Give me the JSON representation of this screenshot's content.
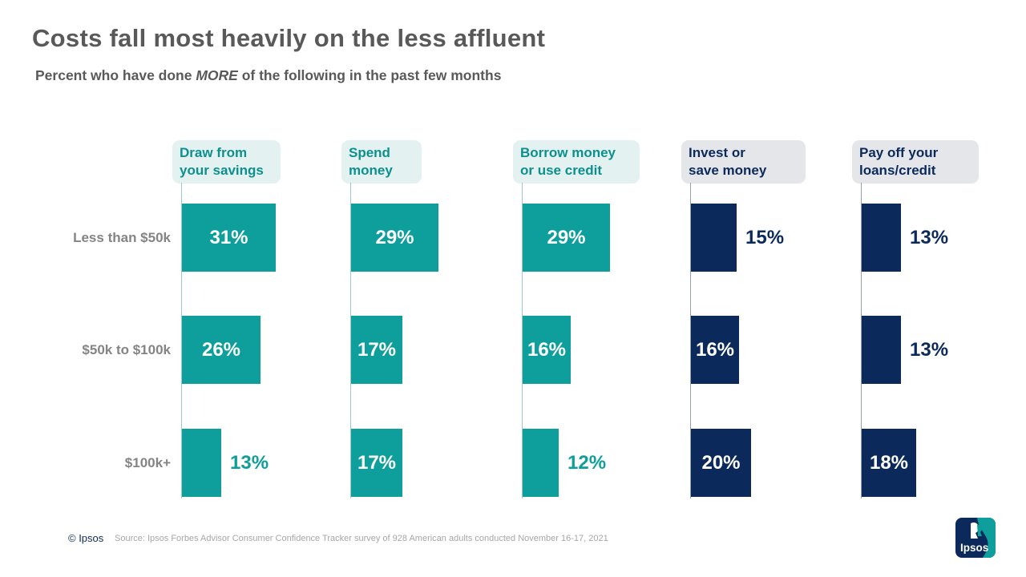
{
  "title": "Costs fall most heavily on the less affluent",
  "subtitle": {
    "prefix": "Percent who have done ",
    "emphasis": "MORE",
    "suffix": " of the following in the past few months"
  },
  "colors": {
    "teal": "#0E9E9C",
    "teal_header_bg": "#E3F2F1",
    "navy": "#0B2A5B",
    "navy_header_bg": "#E5E6E9"
  },
  "chart_data": {
    "type": "bar",
    "orientation": "horizontal",
    "unit": "%",
    "value_labels": true,
    "xlim": [
      0,
      35
    ],
    "categories": [
      "Less than $50k",
      "$50k to $100k",
      "$100k+"
    ],
    "series": [
      {
        "name": "Draw from your savings",
        "lines": [
          "Draw from",
          "your savings"
        ],
        "theme": "teal",
        "values": [
          31,
          26,
          13
        ]
      },
      {
        "name": "Spend money",
        "lines": [
          "Spend",
          "money"
        ],
        "theme": "teal",
        "values": [
          29,
          17,
          17
        ]
      },
      {
        "name": "Borrow money or use credit",
        "lines": [
          "Borrow money",
          "or use credit"
        ],
        "theme": "teal",
        "values": [
          29,
          16,
          12
        ]
      },
      {
        "name": "Invest or save money",
        "lines": [
          "Invest or",
          "save money"
        ],
        "theme": "navy",
        "values": [
          15,
          16,
          20
        ]
      },
      {
        "name": "Pay off your loans/credit",
        "lines": [
          "Pay off your",
          "loans/credit"
        ],
        "theme": "navy",
        "values": [
          13,
          13,
          18
        ]
      }
    ]
  },
  "footer": {
    "copyright": "© Ipsos",
    "source": "Source: Ipsos Forbes Advisor Consumer Confidence Tracker survey of 928 American adults conducted November 16-17, 2021",
    "logo_text": "Ipsos"
  }
}
